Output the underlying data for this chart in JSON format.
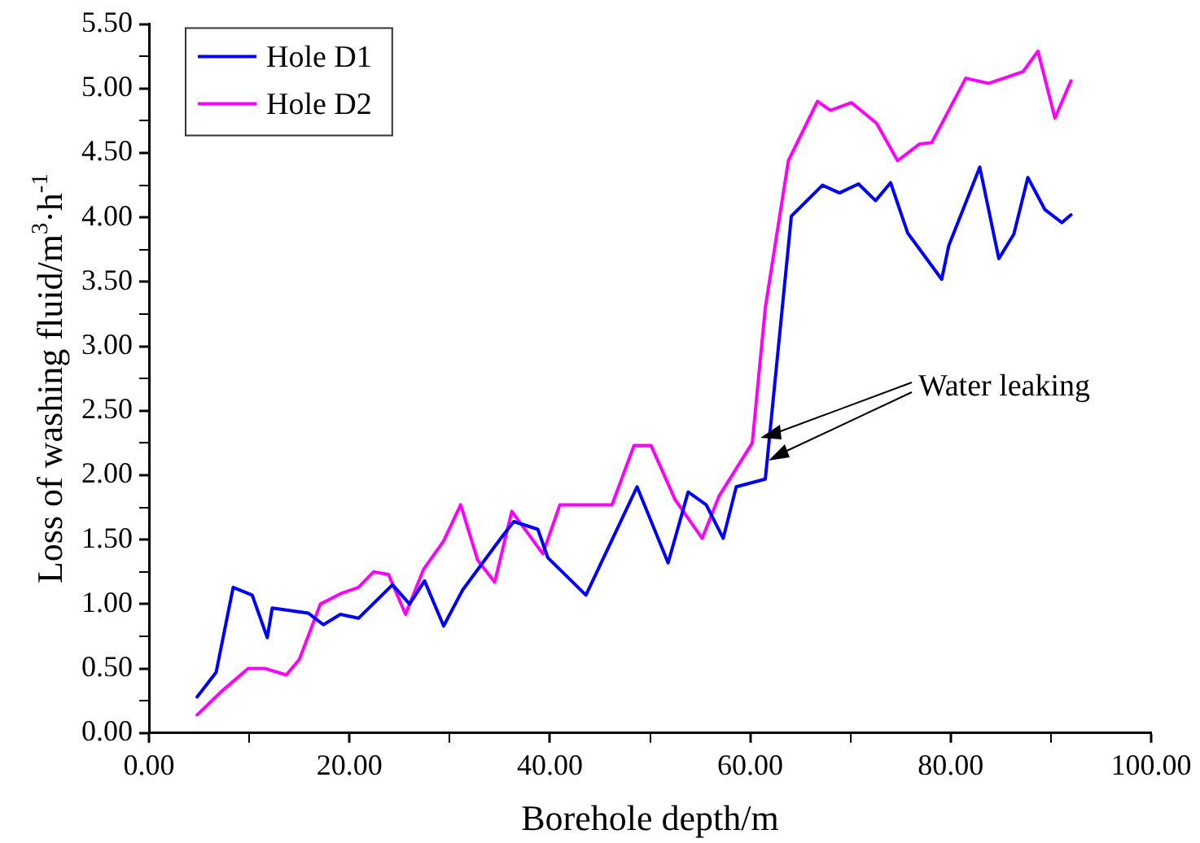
{
  "chart_data": {
    "type": "line",
    "xlabel": "Borehole depth/m",
    "ylabel": "Loss of washing fluid/m$^{3}$·h$^{-1}$",
    "xlim": [
      0,
      100
    ],
    "ylim": [
      0,
      5.5
    ],
    "xticks": [
      {
        "value": 0,
        "label": "0.00"
      },
      {
        "value": 10,
        "label": null
      },
      {
        "value": 20,
        "label": "20.00"
      },
      {
        "value": 30,
        "label": null
      },
      {
        "value": 40,
        "label": "40.00"
      },
      {
        "value": 50,
        "label": null
      },
      {
        "value": 60,
        "label": "60.00"
      },
      {
        "value": 70,
        "label": null
      },
      {
        "value": 80,
        "label": "80.00"
      },
      {
        "value": 90,
        "label": null
      },
      {
        "value": 100,
        "label": "100.00"
      }
    ],
    "yticks": [
      {
        "value": 0,
        "label": "0.00"
      },
      {
        "value": 0.25,
        "label": null
      },
      {
        "value": 0.5,
        "label": "0.50"
      },
      {
        "value": 0.75,
        "label": null
      },
      {
        "value": 1,
        "label": "1.00"
      },
      {
        "value": 1.25,
        "label": null
      },
      {
        "value": 1.5,
        "label": "1.50"
      },
      {
        "value": 1.75,
        "label": null
      },
      {
        "value": 2,
        "label": "2.00"
      },
      {
        "value": 2.25,
        "label": null
      },
      {
        "value": 2.5,
        "label": "2.50"
      },
      {
        "value": 2.75,
        "label": null
      },
      {
        "value": 3,
        "label": "3.00"
      },
      {
        "value": 3.25,
        "label": null
      },
      {
        "value": 3.5,
        "label": "3.50"
      },
      {
        "value": 3.75,
        "label": null
      },
      {
        "value": 4,
        "label": "4.00"
      },
      {
        "value": 4.25,
        "label": null
      },
      {
        "value": 4.5,
        "label": "4.50"
      },
      {
        "value": 4.75,
        "label": null
      },
      {
        "value": 5,
        "label": "5.00"
      },
      {
        "value": 5.25,
        "label": null
      },
      {
        "value": 5.5,
        "label": "5.50"
      }
    ],
    "grid": false,
    "legend": "top left",
    "marker": "none",
    "line_style": "solid",
    "annotations": [
      {
        "text": "Water leaking",
        "x": 61,
        "y": 2.29
      }
    ],
    "series": [
      {
        "name": "Hole D1",
        "color": "#0000ff",
        "x": [
          4.8,
          6.7,
          8.4,
          10.3,
          11.8,
          12.3,
          15.9,
          17.4,
          19.1,
          20.9,
          24.3,
          26,
          27.5,
          29.4,
          31.3,
          35,
          36.4,
          38.8,
          39.8,
          43.6,
          48.7,
          51.8,
          53.8,
          55.6,
          57.3,
          58.6,
          61.5,
          64.1,
          67.2,
          68.9,
          70.8,
          72.5,
          74,
          75.7,
          79.1,
          79.8,
          82.9,
          84.8,
          86.3,
          87.7,
          89.4,
          91.1,
          92
        ],
        "values": [
          0.28,
          0.47,
          1.13,
          1.07,
          0.74,
          0.97,
          0.93,
          0.84,
          0.92,
          0.89,
          1.15,
          1.0,
          1.18,
          0.83,
          1.11,
          1.5,
          1.64,
          1.58,
          1.36,
          1.07,
          1.91,
          1.32,
          1.87,
          1.77,
          1.51,
          1.91,
          1.97,
          4.01,
          4.25,
          4.19,
          4.26,
          4.13,
          4.27,
          3.88,
          3.52,
          3.78,
          4.39,
          3.68,
          3.87,
          4.31,
          4.06,
          3.96,
          4.02
        ]
      },
      {
        "name": "Hole D2",
        "color": "#ff00ff",
        "x": [
          4.8,
          7.2,
          9.9,
          11.6,
          13.7,
          15,
          17.1,
          19.1,
          20.9,
          22.4,
          23.9,
          25.6,
          27.4,
          29.4,
          31.1,
          32.8,
          34.5,
          36.2,
          39.3,
          41,
          46.2,
          48.4,
          50.1,
          52.5,
          55.2,
          56.9,
          60.2,
          61.5,
          63.8,
          66.7,
          68,
          70.1,
          72.6,
          74.7,
          76.9,
          78.1,
          81.5,
          83.8,
          87.2,
          88.7,
          90.4,
          92
        ],
        "values": [
          0.14,
          0.32,
          0.5,
          0.5,
          0.45,
          0.57,
          1.0,
          1.08,
          1.13,
          1.25,
          1.23,
          0.92,
          1.27,
          1.49,
          1.77,
          1.34,
          1.17,
          1.72,
          1.39,
          1.77,
          1.77,
          2.23,
          2.23,
          1.81,
          1.51,
          1.84,
          2.25,
          3.3,
          4.44,
          4.9,
          4.83,
          4.89,
          4.73,
          4.44,
          4.57,
          4.58,
          5.08,
          5.04,
          5.13,
          5.29,
          4.77,
          5.06
        ]
      }
    ]
  }
}
